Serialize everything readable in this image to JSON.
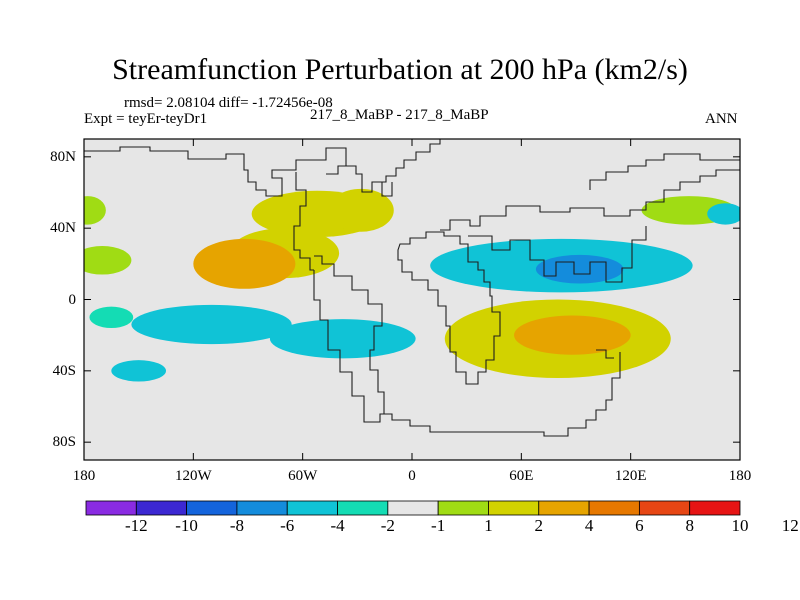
{
  "chart_data": {
    "type": "heatmap",
    "title": "Streamfunction Perturbation at 200 hPa (km2/s)",
    "stats_line": "rmsd= 2.08104 diff= -1.72456e-08",
    "left_label": "Expt = teyEr-teyDr1",
    "center_label": "217_8_MaBP - 217_8_MaBP",
    "right_label": "ANN",
    "xlim": [
      -180,
      180
    ],
    "ylim": [
      -90,
      90
    ],
    "x_ticks": [
      {
        "value": -180,
        "label": "180"
      },
      {
        "value": -120,
        "label": "120W"
      },
      {
        "value": -60,
        "label": "60W"
      },
      {
        "value": 0,
        "label": "0"
      },
      {
        "value": 60,
        "label": "60E"
      },
      {
        "value": 120,
        "label": "120E"
      },
      {
        "value": 180,
        "label": "180"
      }
    ],
    "y_ticks": [
      {
        "value": 80,
        "label": "80N"
      },
      {
        "value": 40,
        "label": "40N"
      },
      {
        "value": 0,
        "label": "0"
      },
      {
        "value": -40,
        "label": "40S"
      },
      {
        "value": -80,
        "label": "80S"
      }
    ],
    "colorbar": {
      "colors": [
        "#8a2be2",
        "#3c28d2",
        "#1464dc",
        "#148cdc",
        "#10c3d6",
        "#14dcb4",
        "#e6e6e6",
        "#a0dc14",
        "#d2d200",
        "#e6a400",
        "#e67800",
        "#e64614",
        "#e61414"
      ],
      "labels": [
        "-12",
        "-10",
        "-8",
        "-6",
        "-4",
        "-2",
        "-1",
        "1",
        "2",
        "4",
        "6",
        "8",
        "10",
        "12"
      ]
    },
    "anomalies": [
      {
        "lon": -92,
        "lat": 20,
        "rx": 28,
        "ry": 14,
        "value": 5.5
      },
      {
        "lon": -70,
        "lat": 26,
        "rx": 30,
        "ry": 14,
        "value": 3
      },
      {
        "lon": -52,
        "lat": 48,
        "rx": 36,
        "ry": 13,
        "value": 2.2
      },
      {
        "lon": -28,
        "lat": 50,
        "rx": 18,
        "ry": 12,
        "value": 2.6
      },
      {
        "lon": -170,
        "lat": 22,
        "rx": 16,
        "ry": 8,
        "value": 1.8
      },
      {
        "lon": -178,
        "lat": 50,
        "rx": 10,
        "ry": 8,
        "value": 1.6
      },
      {
        "lon": 152,
        "lat": 50,
        "rx": 26,
        "ry": 8,
        "value": 1.6
      },
      {
        "lon": 172,
        "lat": 48,
        "rx": 10,
        "ry": 6,
        "value": -2.8
      },
      {
        "lon": 82,
        "lat": 19,
        "rx": 72,
        "ry": 15,
        "value": -3.5
      },
      {
        "lon": 92,
        "lat": 17,
        "rx": 24,
        "ry": 8,
        "value": -4.6
      },
      {
        "lon": 80,
        "lat": -22,
        "rx": 62,
        "ry": 22,
        "value": 3.6
      },
      {
        "lon": 88,
        "lat": -20,
        "rx": 32,
        "ry": 11,
        "value": 5.8
      },
      {
        "lon": -110,
        "lat": -14,
        "rx": 44,
        "ry": 11,
        "value": -3.2
      },
      {
        "lon": -38,
        "lat": -22,
        "rx": 40,
        "ry": 11,
        "value": -3.4
      },
      {
        "lon": -150,
        "lat": -40,
        "rx": 15,
        "ry": 6,
        "value": -3.2
      },
      {
        "lon": -165,
        "lat": -10,
        "rx": 12,
        "ry": 6,
        "value": -1.5
      }
    ]
  }
}
